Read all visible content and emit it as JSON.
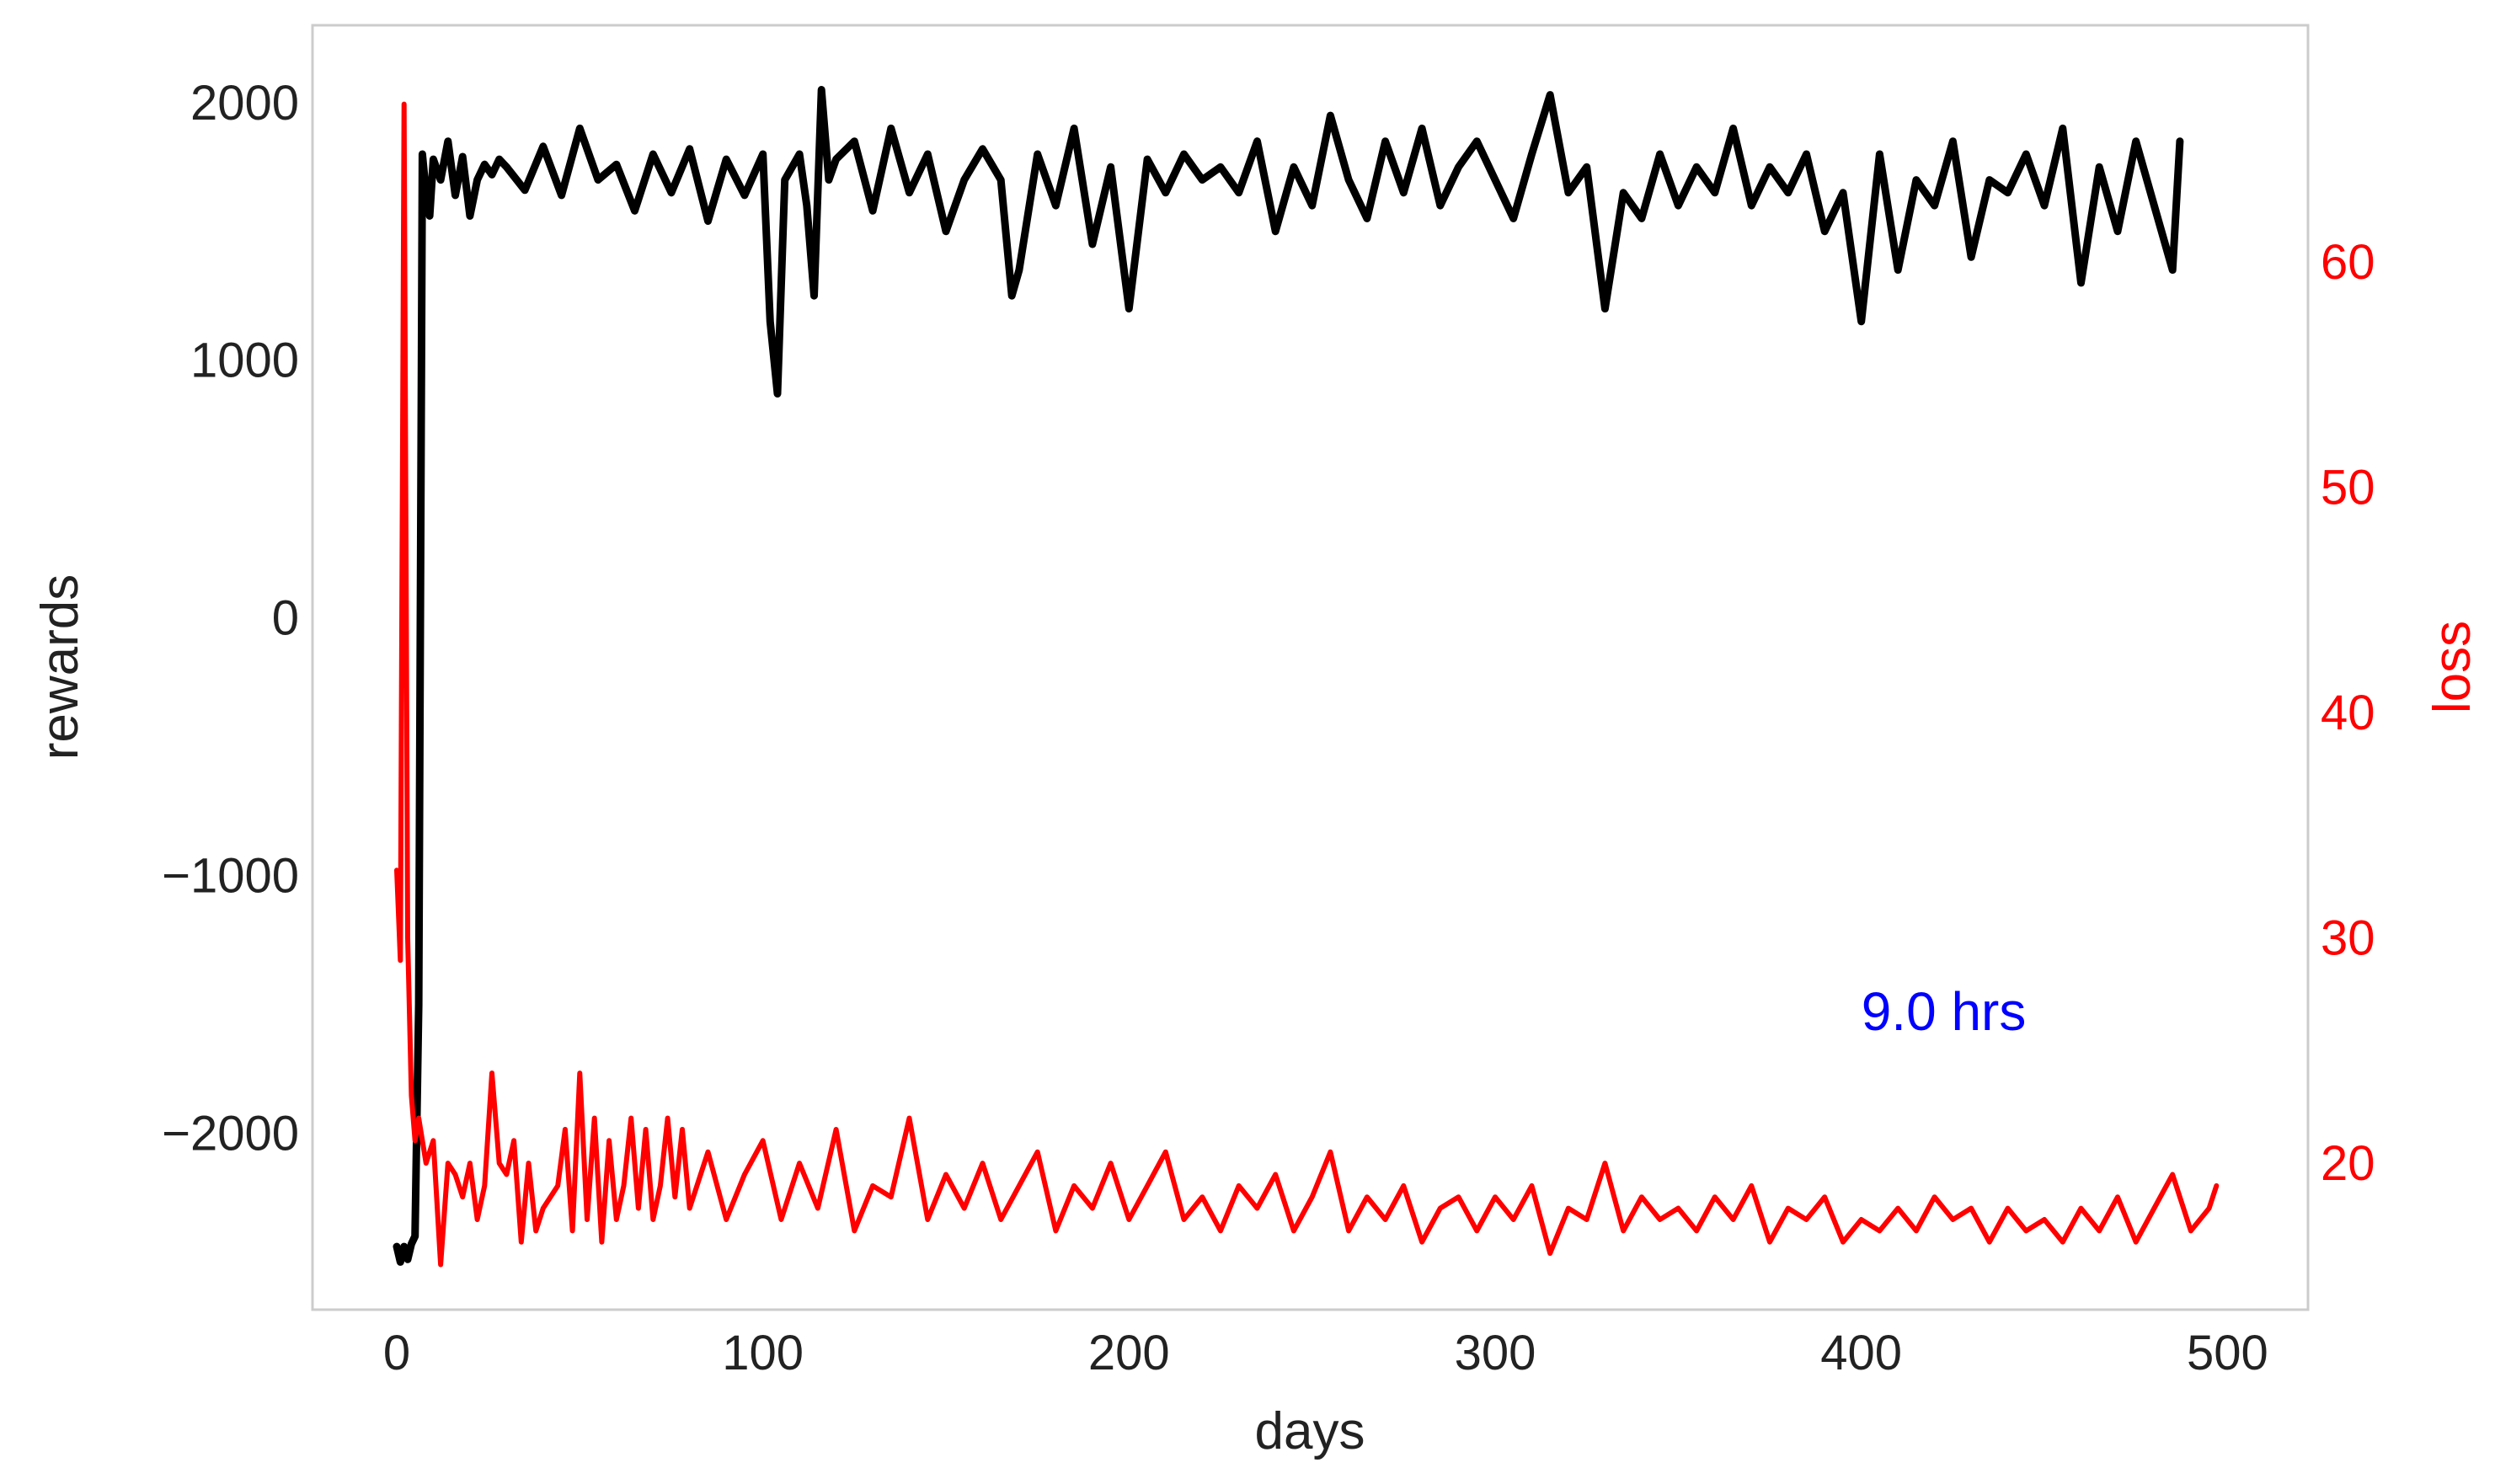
{
  "chart_data": {
    "type": "line",
    "xlabel": "days",
    "ylabel": "rewards",
    "ylabel_right": "loss",
    "xlim": [
      -23,
      522
    ],
    "ylim": [
      -2685,
      2300
    ],
    "ylim_right": [
      13.5,
      70.5
    ],
    "x_ticks": [
      0,
      100,
      200,
      300,
      400,
      500
    ],
    "y_ticks": [
      -2000,
      -1000,
      0,
      1000,
      2000
    ],
    "y_ticks_right": [
      20,
      30,
      40,
      50,
      60
    ],
    "x_tick_labels": [
      "0",
      "100",
      "200",
      "300",
      "400",
      "500"
    ],
    "y_tick_labels": [
      "−2000",
      "−1000",
      "0",
      "1000",
      "2000"
    ],
    "y_tick_labels_right": [
      "20",
      "30",
      "40",
      "50",
      "60"
    ],
    "grid": false,
    "annotation": {
      "text": "9.0 hrs",
      "x": 400,
      "y": -1600
    },
    "colors": {
      "rewards": "#000000",
      "loss": "#ff0000",
      "annotation": "#0000ff",
      "frame": "#cccccc",
      "text": "#222222"
    },
    "series": [
      {
        "axis": "left",
        "x": [
          0,
          1,
          2,
          3,
          4,
          5,
          6,
          7,
          8,
          9,
          10,
          12,
          14,
          16,
          18,
          20,
          22,
          24,
          26,
          28,
          30,
          35,
          40,
          45,
          50,
          55,
          60,
          65,
          70,
          75,
          80,
          85,
          90,
          95,
          100,
          102,
          104,
          106,
          110,
          112,
          114,
          116,
          118,
          120,
          125,
          130,
          135,
          140,
          145,
          150,
          155,
          160,
          165,
          168,
          170,
          175,
          180,
          185,
          190,
          195,
          200,
          205,
          210,
          215,
          220,
          225,
          230,
          235,
          240,
          245,
          250,
          255,
          260,
          265,
          270,
          275,
          280,
          285,
          290,
          295,
          300,
          305,
          310,
          315,
          320,
          325,
          330,
          335,
          340,
          345,
          350,
          355,
          360,
          365,
          370,
          375,
          380,
          385,
          390,
          395,
          400,
          405,
          410,
          415,
          420,
          425,
          430,
          435,
          440,
          445,
          450,
          455,
          460,
          465,
          470,
          475,
          480,
          485,
          487
        ],
        "y": [
          -2440,
          -2500,
          -2440,
          -2490,
          -2430,
          -2400,
          -1500,
          1800,
          1650,
          1560,
          1780,
          1700,
          1850,
          1640,
          1790,
          1560,
          1700,
          1760,
          1720,
          1780,
          1750,
          1660,
          1830,
          1640,
          1900,
          1700,
          1760,
          1580,
          1800,
          1650,
          1820,
          1540,
          1780,
          1640,
          1800,
          1150,
          870,
          1700,
          1800,
          1600,
          1250,
          2050,
          1700,
          1780,
          1850,
          1580,
          1900,
          1650,
          1800,
          1500,
          1700,
          1820,
          1700,
          1250,
          1350,
          1800,
          1600,
          1900,
          1450,
          1750,
          1200,
          1780,
          1650,
          1800,
          1700,
          1750,
          1650,
          1850,
          1500,
          1750,
          1600,
          1950,
          1700,
          1550,
          1850,
          1650,
          1900,
          1600,
          1750,
          1850,
          1700,
          1550,
          1800,
          2030,
          1650,
          1750,
          1200,
          1650,
          1550,
          1800,
          1600,
          1750,
          1650,
          1900,
          1600,
          1750,
          1650,
          1800,
          1500,
          1650,
          1150,
          1800,
          1350,
          1700,
          1600,
          1850,
          1400,
          1700,
          1650,
          1800,
          1600,
          1900,
          1300,
          1750,
          1500,
          1850,
          1600,
          1350,
          1850
        ]
      },
      {
        "axis": "right",
        "x": [
          0,
          1,
          2,
          3,
          4,
          5,
          6,
          8,
          10,
          12,
          14,
          16,
          18,
          20,
          22,
          24,
          26,
          28,
          30,
          32,
          34,
          36,
          38,
          40,
          42,
          44,
          46,
          48,
          50,
          52,
          54,
          56,
          58,
          60,
          62,
          64,
          66,
          68,
          70,
          72,
          74,
          76,
          78,
          80,
          85,
          90,
          95,
          100,
          105,
          110,
          115,
          120,
          125,
          130,
          135,
          140,
          145,
          150,
          155,
          160,
          165,
          170,
          175,
          180,
          185,
          190,
          195,
          200,
          205,
          210,
          215,
          220,
          225,
          230,
          235,
          240,
          245,
          250,
          255,
          260,
          265,
          270,
          275,
          280,
          285,
          290,
          295,
          300,
          305,
          310,
          315,
          320,
          325,
          330,
          335,
          340,
          345,
          350,
          355,
          360,
          365,
          370,
          375,
          380,
          385,
          390,
          395,
          400,
          405,
          410,
          415,
          420,
          425,
          430,
          435,
          440,
          445,
          450,
          455,
          460,
          465,
          470,
          475,
          480,
          485,
          490,
          495,
          497
        ],
        "y": [
          33,
          29,
          67,
          30,
          23,
          21,
          22,
          20,
          21,
          15.5,
          20,
          19.5,
          18.5,
          20,
          17.5,
          19,
          24,
          20,
          19.5,
          21,
          16.5,
          20,
          17,
          18,
          18.5,
          19,
          21.5,
          17,
          24,
          17.5,
          22,
          16.5,
          21,
          17.5,
          19,
          22,
          18,
          21.5,
          17.5,
          19,
          22,
          18.5,
          21.5,
          18,
          20.5,
          17.5,
          19.5,
          21,
          17.5,
          20,
          18,
          21.5,
          17,
          19,
          18.5,
          22,
          17.5,
          19.5,
          18,
          20,
          17.5,
          19,
          20.5,
          17,
          19,
          18,
          20,
          17.5,
          19,
          20.5,
          17.5,
          18.5,
          17,
          19,
          18,
          19.5,
          17,
          18.5,
          20.5,
          17,
          18.5,
          17.5,
          19,
          16.5,
          18,
          18.5,
          17,
          18.5,
          17.5,
          19,
          16,
          18,
          17.5,
          20,
          17,
          18.5,
          17.5,
          18,
          17,
          18.5,
          17.5,
          19,
          16.5,
          18,
          17.5,
          18.5,
          16.5,
          17.5,
          17,
          18,
          17,
          18.5,
          17.5,
          18,
          16.5,
          18,
          17,
          17.5,
          16.5,
          18,
          17,
          18.5,
          16.5,
          18,
          19.5,
          17,
          18,
          19
        ]
      }
    ]
  }
}
